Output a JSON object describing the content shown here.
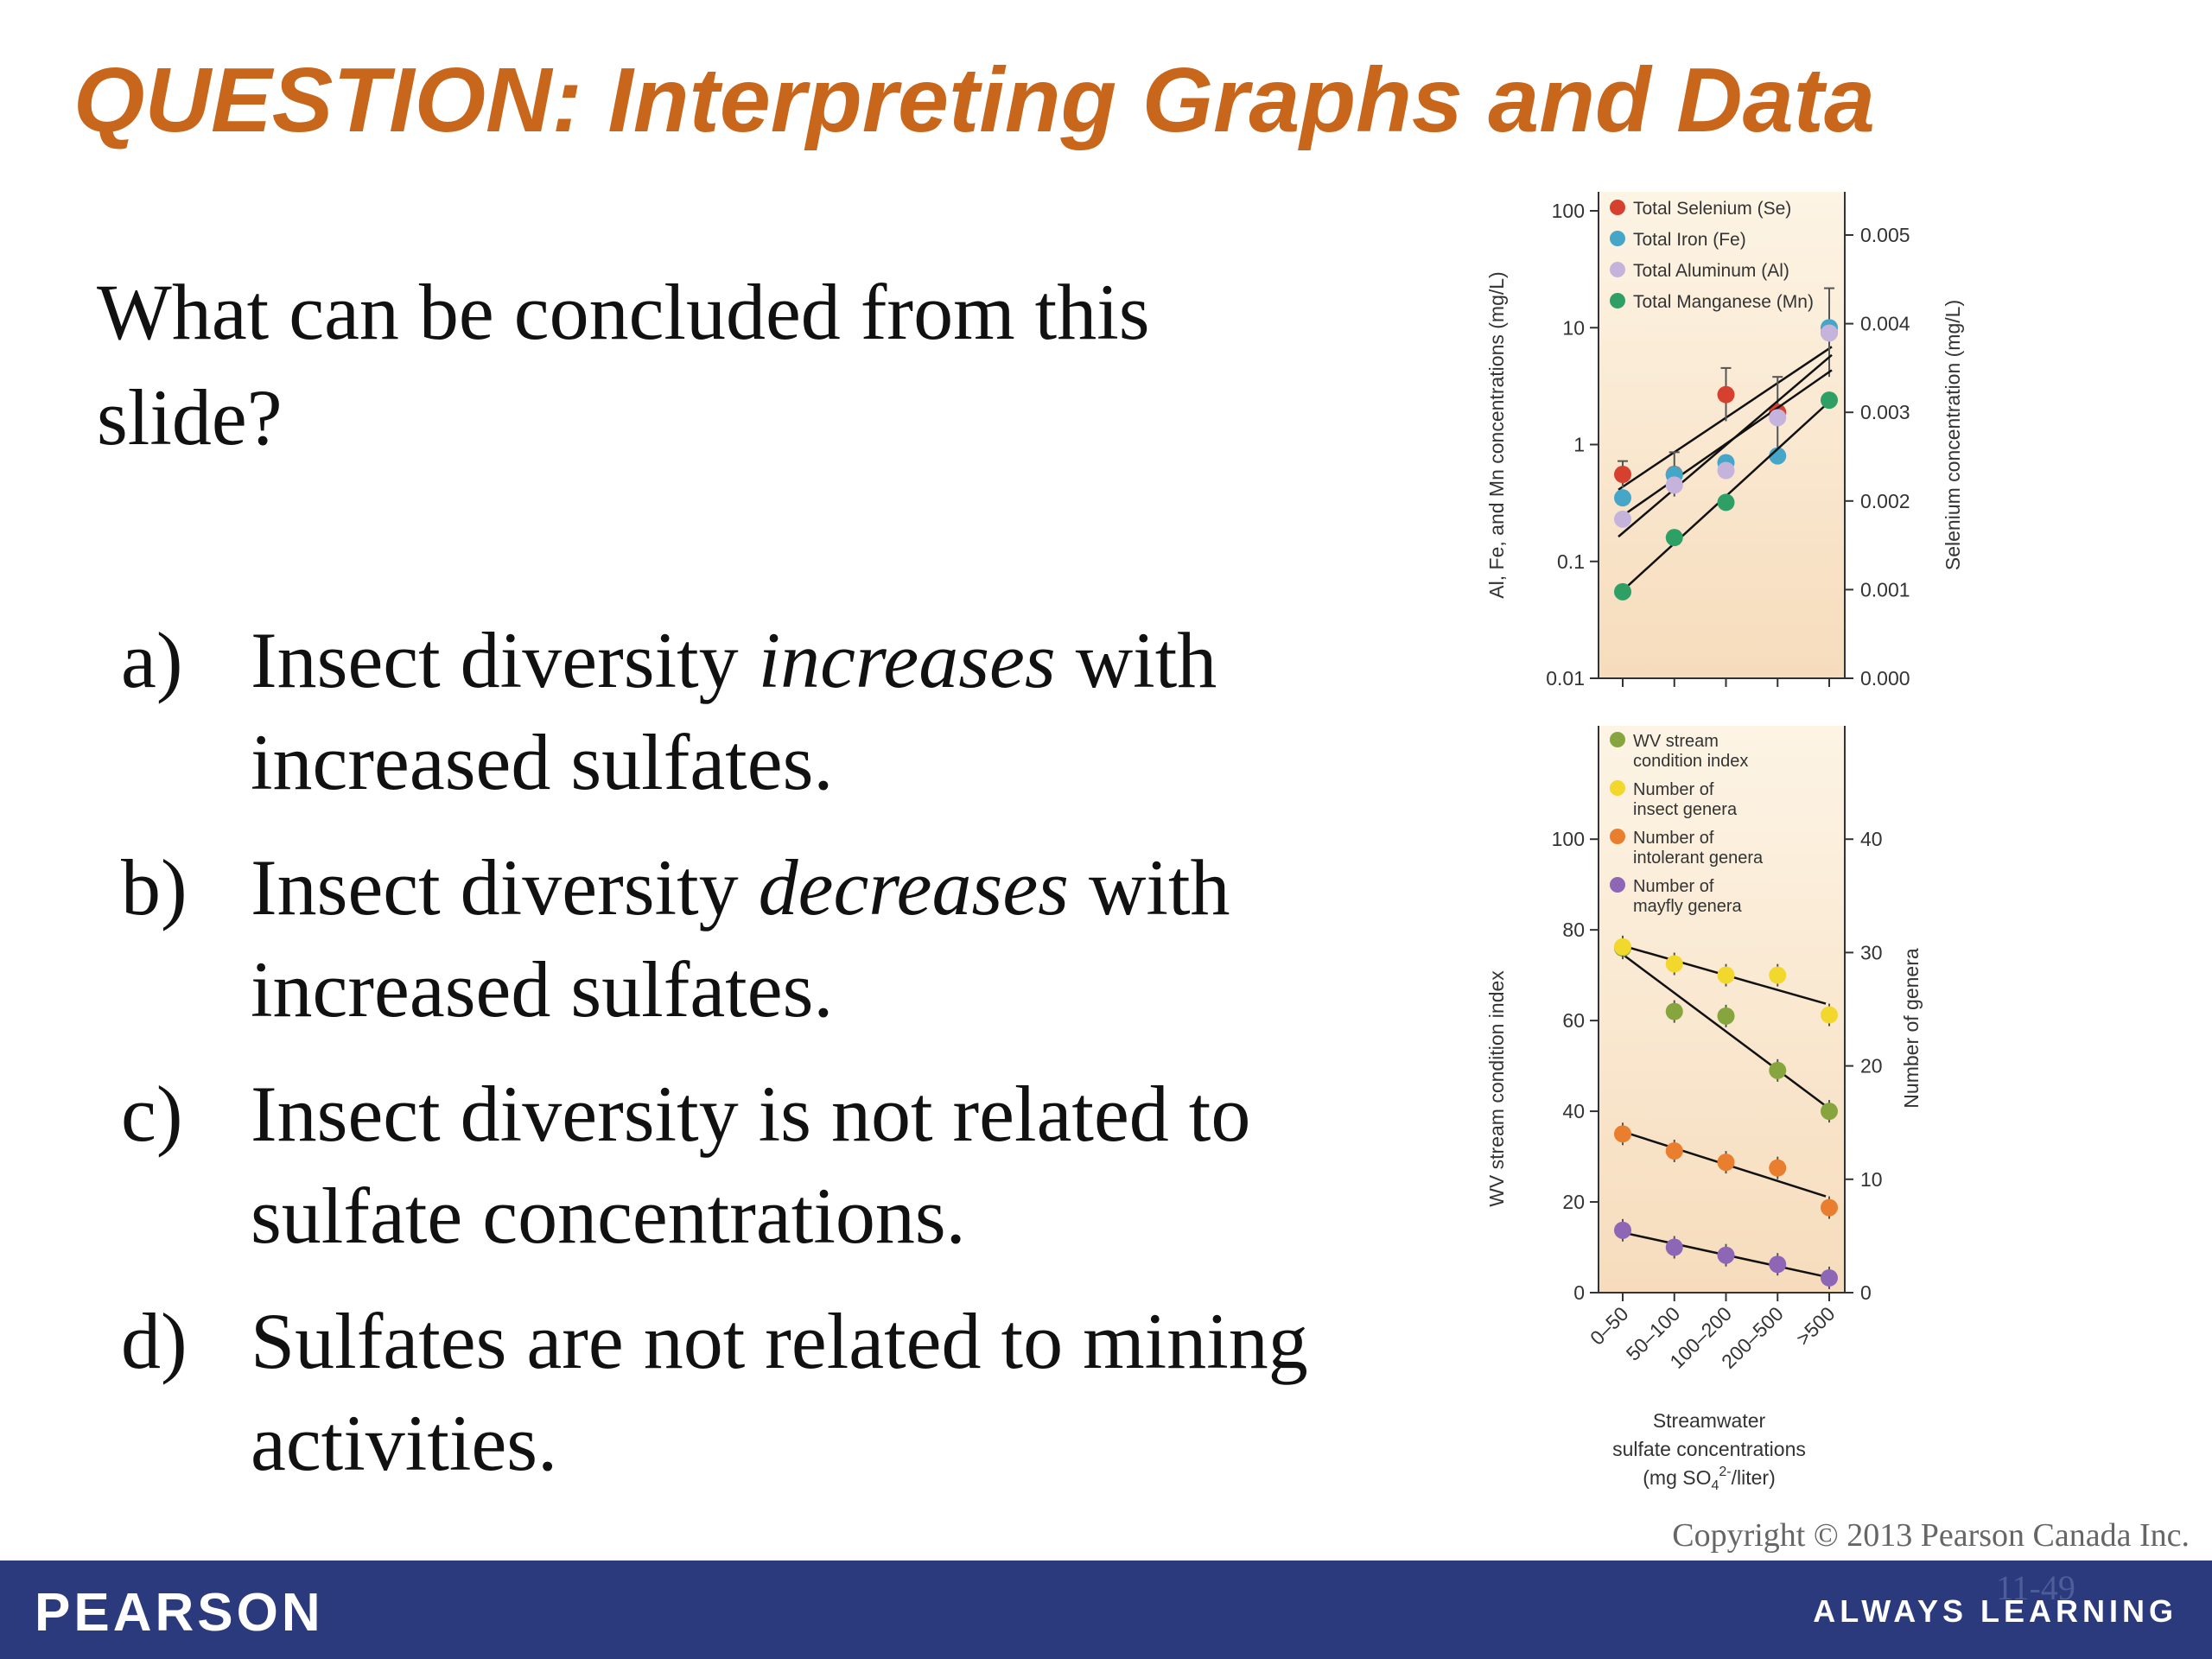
{
  "slide": {
    "title": "QUESTION: Interpreting Graphs and Data",
    "question": "What can be concluded from this slide?",
    "answers": [
      {
        "letter": "a)",
        "pre": "Insect diversity ",
        "em": "increases",
        "post": " with increased sulfates."
      },
      {
        "letter": "b)",
        "pre": "Insect diversity ",
        "em": "decreases",
        "post": " with increased sulfates."
      },
      {
        "letter": "c)",
        "pre": "Insect diversity is not related to sulfate concentrations.",
        "em": "",
        "post": ""
      },
      {
        "letter": "d)",
        "pre": "Sulfates are not related to mining activities.",
        "em": "",
        "post": ""
      }
    ],
    "copyright": "Copyright © 2013 Pearson Canada Inc.",
    "page_number": "11-49",
    "brand": "PEARSON",
    "tagline": "ALWAYS LEARNING"
  },
  "colors": {
    "title": "#c8661c",
    "footer": "#2a3a7c",
    "plot_bg_top": "#fdf4e5",
    "plot_bg_bottom": "#f6dcbc",
    "selenium": "#d6402e",
    "iron": "#45a6c8",
    "aluminum": "#c6b3dc",
    "manganese": "#2ea065",
    "wv_index": "#86a53e",
    "insect": "#f2d72c",
    "intolerant": "#e87e2e",
    "mayfly": "#8e66b6"
  },
  "chart_data": [
    {
      "type": "scatter",
      "categories": [
        "0–50",
        "50–100",
        "100–200",
        "200–500",
        ">500"
      ],
      "y_left_label": "Al, Fe, and Mn concentrations (mg/L)",
      "y_left_scale": "log",
      "y_left_ticks": [
        "0.01",
        "0.1",
        "1",
        "10",
        "100"
      ],
      "y_left_lim": [
        0.01,
        100
      ],
      "y_right_label": "Selenium concentration (mg/L)",
      "y_right_ticks": [
        "0.000",
        "0.001",
        "0.002",
        "0.003",
        "0.004",
        "0.005"
      ],
      "y_right_lim": [
        0,
        0.005
      ],
      "legend_position": "top-left",
      "trendlines": true,
      "series": [
        {
          "name": "Total Selenium (Se)",
          "axis": "right",
          "color_key": "selenium",
          "values": [
            0.0023,
            0.0023,
            0.0032,
            0.003,
            0.0039
          ],
          "err": [
            0.00015,
            0.00025,
            0.0003,
            0.0004,
            0.0005
          ]
        },
        {
          "name": "Total Iron (Fe)",
          "axis": "left",
          "color_key": "iron",
          "values": [
            0.35,
            0.55,
            0.7,
            0.8,
            10
          ],
          "err": [
            0,
            0,
            0,
            0,
            0
          ]
        },
        {
          "name": "Total Aluminum (Al)",
          "axis": "left",
          "color_key": "aluminum",
          "values": [
            0.23,
            0.45,
            0.6,
            1.7,
            9
          ],
          "err": [
            0,
            0,
            0,
            0,
            0
          ]
        },
        {
          "name": "Total Manganese (Mn)",
          "axis": "left",
          "color_key": "manganese",
          "values": [
            0.055,
            0.16,
            0.32,
            0,
            2.4
          ],
          "err": [
            0,
            0,
            0,
            0,
            0
          ]
        }
      ]
    },
    {
      "type": "scatter",
      "categories": [
        "0–50",
        "50–100",
        "100–200",
        "200–500",
        ">500"
      ],
      "xlabel_lines": [
        "Streamwater",
        "sulfate concentrations"
      ],
      "xlabel_unit": {
        "pre": "(mg SO",
        "sub": "4",
        "sup": "2-",
        "post": "/liter)"
      },
      "y_left_label": "WV stream condition index",
      "y_left_ticks": [
        "0",
        "20",
        "40",
        "60",
        "80",
        "100"
      ],
      "y_left_lim": [
        0,
        125
      ],
      "y_right_label": "Number of genera",
      "y_right_ticks": [
        "0",
        "10",
        "20",
        "30",
        "40"
      ],
      "y_right_lim": [
        0,
        50
      ],
      "legend_position": "top-left",
      "trendlines": true,
      "series": [
        {
          "name_lines": [
            "WV stream",
            "condition index"
          ],
          "axis": "left",
          "color_key": "wv_index",
          "values": [
            76,
            62,
            61,
            49,
            40
          ],
          "err": [
            0,
            0,
            0,
            0,
            0
          ]
        },
        {
          "name_lines": [
            "Number of",
            "insect genera"
          ],
          "axis": "right",
          "color_key": "insect",
          "values": [
            30.5,
            29,
            28,
            28,
            24.5
          ],
          "err": [
            0,
            0,
            0,
            0,
            0
          ]
        },
        {
          "name_lines": [
            "Number of",
            "intolerant genera"
          ],
          "axis": "right",
          "color_key": "intolerant",
          "values": [
            14,
            12.5,
            11.5,
            11,
            7.5
          ],
          "err": [
            0,
            0,
            0,
            0,
            0
          ]
        },
        {
          "name_lines": [
            "Number of",
            "mayfly genera"
          ],
          "axis": "right",
          "color_key": "mayfly",
          "values": [
            5.5,
            4,
            3.3,
            2.5,
            1.3
          ],
          "err": [
            0,
            0,
            0,
            0,
            0
          ]
        }
      ]
    }
  ]
}
